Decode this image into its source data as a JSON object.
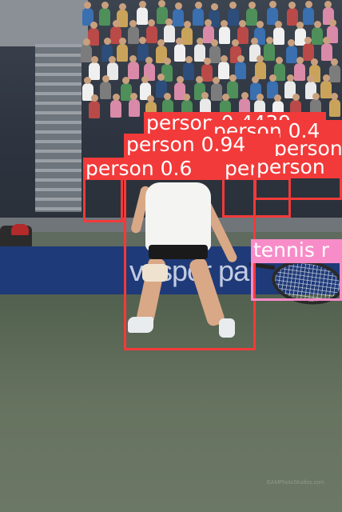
{
  "colors": {
    "person_box": "#f23a3a",
    "tennis_racket_box": "#f78cc8"
  },
  "scene": {
    "sponsor_wall_text": "vaspor pa"
  },
  "detections": [
    {
      "class": "person",
      "label": "person 0.4439"
    },
    {
      "class": "person",
      "label": "person 0.4"
    },
    {
      "class": "person",
      "label": "person 0.94"
    },
    {
      "class": "person",
      "label": "person 0.4"
    },
    {
      "class": "person",
      "label": "person 0.6"
    },
    {
      "class": "person",
      "label": "person"
    },
    {
      "class": "person",
      "label": "person"
    },
    {
      "class": "tennis racket",
      "label": "tennis r"
    }
  ],
  "watermark": "EAMPhotoStudios.com"
}
